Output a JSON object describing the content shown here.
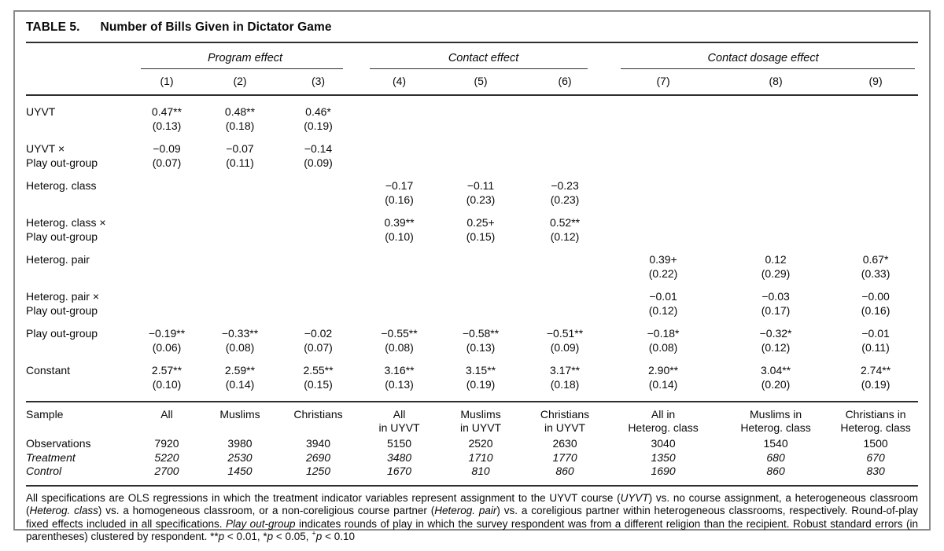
{
  "title": {
    "tag": "TABLE 5.",
    "text": "Number of Bills Given in Dictator Game"
  },
  "groups": [
    {
      "label": "Program effect"
    },
    {
      "label": "Contact effect"
    },
    {
      "label": "Contact dosage effect"
    }
  ],
  "columns": [
    "(1)",
    "(2)",
    "(3)",
    "(4)",
    "(5)",
    "(6)",
    "(7)",
    "(8)",
    "(9)"
  ],
  "coef_rows": [
    {
      "label": [
        "UYVT"
      ],
      "cells": [
        [
          "0.47**",
          "(0.13)"
        ],
        [
          "0.48**",
          "(0.18)"
        ],
        [
          "0.46*",
          "(0.19)"
        ],
        null,
        null,
        null,
        null,
        null,
        null
      ]
    },
    {
      "label": [
        "UYVT ×",
        "Play out-group"
      ],
      "cells": [
        [
          "−0.09",
          "(0.07)"
        ],
        [
          "−0.07",
          "(0.11)"
        ],
        [
          "−0.14",
          "(0.09)"
        ],
        null,
        null,
        null,
        null,
        null,
        null
      ]
    },
    {
      "label": [
        "Heterog. class"
      ],
      "cells": [
        null,
        null,
        null,
        [
          "−0.17",
          "(0.16)"
        ],
        [
          "−0.11",
          "(0.23)"
        ],
        [
          "−0.23",
          "(0.23)"
        ],
        null,
        null,
        null
      ]
    },
    {
      "label": [
        "Heterog. class ×",
        "Play out-group"
      ],
      "cells": [
        null,
        null,
        null,
        [
          "0.39**",
          "(0.10)"
        ],
        [
          "0.25+",
          "(0.15)"
        ],
        [
          "0.52**",
          "(0.12)"
        ],
        null,
        null,
        null
      ]
    },
    {
      "label": [
        "Heterog. pair"
      ],
      "cells": [
        null,
        null,
        null,
        null,
        null,
        null,
        [
          "0.39+",
          "(0.22)"
        ],
        [
          "0.12",
          "(0.29)"
        ],
        [
          "0.67*",
          "(0.33)"
        ]
      ]
    },
    {
      "label": [
        "Heterog. pair ×",
        "Play out-group"
      ],
      "cells": [
        null,
        null,
        null,
        null,
        null,
        null,
        [
          "−0.01",
          "(0.12)"
        ],
        [
          "−0.03",
          "(0.17)"
        ],
        [
          "−0.00",
          "(0.16)"
        ]
      ]
    },
    {
      "label": [
        "Play out-group"
      ],
      "cells": [
        [
          "−0.19**",
          "(0.06)"
        ],
        [
          "−0.33**",
          "(0.08)"
        ],
        [
          "−0.02",
          "(0.07)"
        ],
        [
          "−0.55**",
          "(0.08)"
        ],
        [
          "−0.58**",
          "(0.13)"
        ],
        [
          "−0.51**",
          "(0.09)"
        ],
        [
          "−0.18*",
          "(0.08)"
        ],
        [
          "−0.32*",
          "(0.12)"
        ],
        [
          "−0.01",
          "(0.11)"
        ]
      ]
    },
    {
      "label": [
        "Constant"
      ],
      "cells": [
        [
          "2.57**",
          "(0.10)"
        ],
        [
          "2.59**",
          "(0.14)"
        ],
        [
          "2.55**",
          "(0.15)"
        ],
        [
          "3.16**",
          "(0.13)"
        ],
        [
          "3.15**",
          "(0.19)"
        ],
        [
          "3.17**",
          "(0.18)"
        ],
        [
          "2.90**",
          "(0.14)"
        ],
        [
          "3.04**",
          "(0.20)"
        ],
        [
          "2.74**",
          "(0.19)"
        ]
      ]
    }
  ],
  "sample_section": {
    "sample_label": "Sample",
    "samples": [
      [
        "All"
      ],
      [
        "Muslims"
      ],
      [
        "Christians"
      ],
      [
        "All",
        "in UYVT"
      ],
      [
        "Muslims",
        "in UYVT"
      ],
      [
        "Christians",
        "in UYVT"
      ],
      [
        "All in",
        "Heterog. class"
      ],
      [
        "Muslims in",
        "Heterog. class"
      ],
      [
        "Christians in",
        "Heterog. class"
      ]
    ],
    "stat_rows": [
      {
        "label": "Observations",
        "italic": false,
        "values": [
          "7920",
          "3980",
          "3940",
          "5150",
          "2520",
          "2630",
          "3040",
          "1540",
          "1500"
        ]
      },
      {
        "label": "Treatment",
        "italic": true,
        "values": [
          "5220",
          "2530",
          "2690",
          "3480",
          "1710",
          "1770",
          "1350",
          "680",
          "670"
        ]
      },
      {
        "label": "Control",
        "italic": true,
        "values": [
          "2700",
          "1450",
          "1250",
          "1670",
          "810",
          "860",
          "1690",
          "860",
          "830"
        ]
      }
    ]
  },
  "footnote": {
    "segments": [
      {
        "t": "All specifications are OLS regressions in which the treatment indicator variables represent assignment to the UYVT course ("
      },
      {
        "t": "UYVT",
        "i": true
      },
      {
        "t": ") vs. no course assignment, a heterogeneous classroom ("
      },
      {
        "t": "Heterog. class",
        "i": true
      },
      {
        "t": ") vs. a homogeneous classroom, or a non-coreligious course partner ("
      },
      {
        "t": "Heterog. pair",
        "i": true
      },
      {
        "t": ") vs. a coreligious partner within heterogeneous classrooms, respectively. Round-of-play fixed effects included in all specifications. "
      },
      {
        "t": "Play out-group",
        "i": true
      },
      {
        "t": " indicates rounds of play in which the survey respondent was from a different religion than the recipient. Robust standard errors (in parentheses) clustered by respondent. **"
      },
      {
        "t": "p",
        "i": true
      },
      {
        "t": " < 0.01, *"
      },
      {
        "t": "p",
        "i": true
      },
      {
        "t": " < 0.05, "
      },
      {
        "t": "+",
        "sup": true
      },
      {
        "t": "p",
        "i": true
      },
      {
        "t": " < 0.10"
      }
    ]
  }
}
